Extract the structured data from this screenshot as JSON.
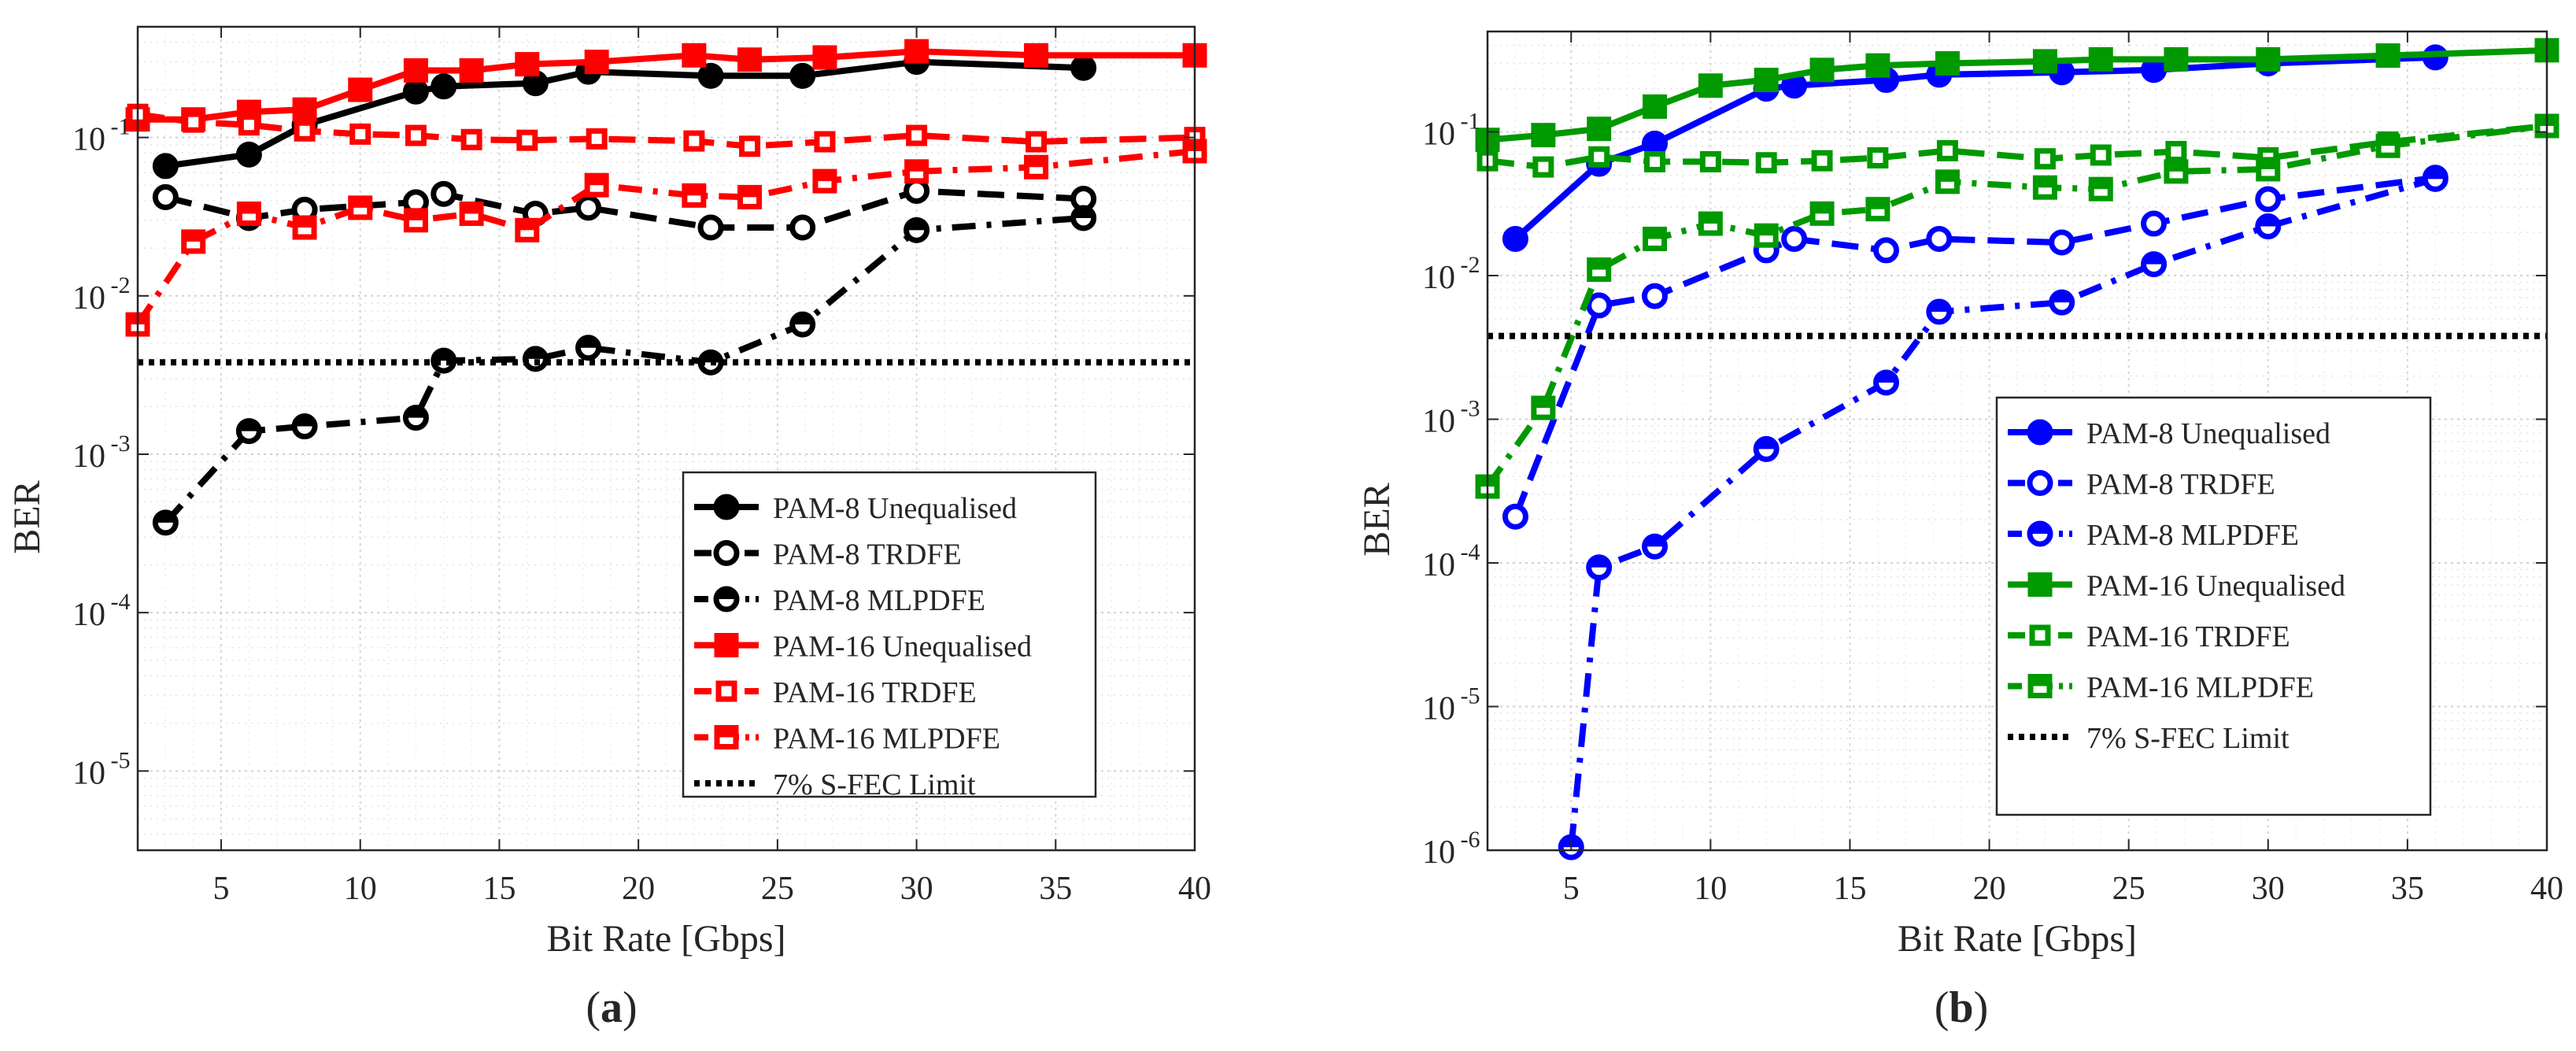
{
  "chart_data": [
    {
      "panel": "(a)",
      "caption_label": "a",
      "type": "line",
      "xlabel": "Bit Rate [Gbps]",
      "ylabel": "BER",
      "yscale": "log",
      "xlim": [
        2,
        40
      ],
      "ylim": [
        3.16e-06,
        0.5
      ],
      "xticks": [
        5,
        10,
        15,
        20,
        25,
        30,
        35,
        40
      ],
      "yticks": [
        {
          "value": 1e-05,
          "exp": "-5"
        },
        {
          "value": 0.0001,
          "exp": "-4"
        },
        {
          "value": 0.001,
          "exp": "-3"
        },
        {
          "value": 0.01,
          "exp": "-2"
        },
        {
          "value": 0.1,
          "exp": "-1"
        }
      ],
      "grid": true,
      "legend_position": "bottom-right",
      "series": [
        {
          "name": "PAM-8 Unequalised",
          "color": "#000000",
          "dash": "solid",
          "marker": "circle-filled",
          "x": [
            3,
            6,
            8,
            12,
            13,
            16.3,
            18.2,
            22.6,
            25.9,
            30,
            36
          ],
          "y": [
            0.066,
            0.078,
            0.12,
            0.195,
            0.21,
            0.22,
            0.26,
            0.245,
            0.245,
            0.3,
            0.275
          ]
        },
        {
          "name": "PAM-8 TRDFE",
          "color": "#000000",
          "dash": "dashed",
          "marker": "circle-open",
          "x": [
            3,
            6,
            8,
            12,
            13,
            16.3,
            18.2,
            22.6,
            25.9,
            30,
            36
          ],
          "y": [
            0.042,
            0.031,
            0.035,
            0.039,
            0.044,
            0.033,
            0.036,
            0.027,
            0.027,
            0.046,
            0.041
          ]
        },
        {
          "name": "PAM-8 MLPDFE",
          "color": "#000000",
          "dash": "dashdot",
          "marker": "circle-half",
          "x": [
            3,
            6,
            8,
            12,
            13,
            16.3,
            18.2,
            22.6,
            25.9,
            30,
            36
          ],
          "y": [
            0.00037,
            0.0014,
            0.0015,
            0.0017,
            0.0039,
            0.004,
            0.0047,
            0.0038,
            0.0066,
            0.026,
            0.031
          ]
        },
        {
          "name": "PAM-16 Unequalised",
          "color": "#ff0000",
          "dash": "solid",
          "marker": "square-filled",
          "x": [
            2,
            4,
            6,
            8,
            10,
            12,
            14,
            16,
            18.5,
            22,
            24,
            26.7,
            30,
            34.3,
            40
          ],
          "y": [
            0.13,
            0.13,
            0.145,
            0.15,
            0.2,
            0.265,
            0.265,
            0.29,
            0.3,
            0.33,
            0.31,
            0.32,
            0.35,
            0.33,
            0.33
          ]
        },
        {
          "name": "PAM-16 TRDFE",
          "color": "#ff0000",
          "dash": "dashed",
          "marker": "square-open",
          "x": [
            2,
            4,
            6,
            8,
            10,
            12,
            14,
            16,
            18.5,
            22,
            24,
            26.7,
            30,
            34.3,
            40
          ],
          "y": [
            0.14,
            0.125,
            0.12,
            0.11,
            0.105,
            0.103,
            0.097,
            0.096,
            0.098,
            0.095,
            0.088,
            0.094,
            0.103,
            0.094,
            0.1
          ]
        },
        {
          "name": "PAM-16 MLPDFE",
          "color": "#ff0000",
          "dash": "dashdot",
          "marker": "square-half",
          "x": [
            2,
            4,
            6,
            8,
            10,
            12,
            14,
            16,
            18.5,
            22,
            24,
            26.7,
            30,
            34.3,
            40
          ],
          "y": [
            0.0066,
            0.022,
            0.033,
            0.027,
            0.036,
            0.03,
            0.033,
            0.026,
            0.05,
            0.043,
            0.042,
            0.053,
            0.061,
            0.065,
            0.082
          ]
        },
        {
          "name": "7% S-FEC Limit",
          "color": "#000000",
          "dash": "dotted",
          "marker": "none",
          "x": [
            2,
            40
          ],
          "y": [
            0.0038,
            0.0038
          ]
        }
      ]
    },
    {
      "panel": "(b)",
      "caption_label": "b",
      "type": "line",
      "xlabel": "Bit Rate [Gbps]",
      "ylabel": "BER",
      "yscale": "log",
      "xlim": [
        2,
        40
      ],
      "ylim": [
        1e-06,
        0.5
      ],
      "xticks": [
        5,
        10,
        15,
        20,
        25,
        30,
        35,
        40
      ],
      "yticks": [
        {
          "value": 1e-06,
          "exp": "-6"
        },
        {
          "value": 1e-05,
          "exp": "-5"
        },
        {
          "value": 0.0001,
          "exp": "-4"
        },
        {
          "value": 0.001,
          "exp": "-3"
        },
        {
          "value": 0.01,
          "exp": "-2"
        },
        {
          "value": 0.1,
          "exp": "-1"
        }
      ],
      "grid": true,
      "legend_position": "bottom-right",
      "series": [
        {
          "name": "PAM-8 Unequalised",
          "color": "#0000ff",
          "dash": "solid",
          "marker": "circle-filled",
          "x": [
            3,
            6,
            8,
            12,
            13,
            16.3,
            18.2,
            22.6,
            25.9,
            30,
            36
          ],
          "y": [
            0.018,
            0.06,
            0.083,
            0.2,
            0.21,
            0.23,
            0.25,
            0.26,
            0.27,
            0.3,
            0.33
          ]
        },
        {
          "name": "PAM-8 TRDFE",
          "color": "#0000ff",
          "dash": "dashed",
          "marker": "circle-open",
          "x": [
            3,
            6,
            8,
            12,
            13,
            16.3,
            18.2,
            22.6,
            25.9,
            30,
            36
          ],
          "y": [
            0.00021,
            0.0062,
            0.0072,
            0.015,
            0.018,
            0.015,
            0.018,
            0.017,
            0.023,
            0.034,
            0.048
          ]
        },
        {
          "name": "PAM-8 MLPDFE",
          "color": "#0000ff",
          "dash": "dashdot",
          "marker": "circle-half",
          "x": [
            5,
            6,
            8,
            12,
            16.3,
            18.2,
            22.6,
            25.9,
            30,
            36
          ],
          "y": [
            1.05e-06,
            9.3e-05,
            0.00013,
            0.00062,
            0.0018,
            0.0056,
            0.0065,
            0.012,
            0.022,
            0.047
          ]
        },
        {
          "name": "PAM-16 Unequalised",
          "color": "#009900",
          "dash": "solid",
          "marker": "square-filled",
          "x": [
            2,
            4,
            6,
            8,
            10,
            12,
            14,
            16,
            18.5,
            22,
            24,
            26.7,
            30,
            34.3,
            40
          ],
          "y": [
            0.088,
            0.095,
            0.105,
            0.15,
            0.21,
            0.23,
            0.27,
            0.29,
            0.3,
            0.31,
            0.32,
            0.32,
            0.32,
            0.34,
            0.37
          ]
        },
        {
          "name": "PAM-16 TRDFE",
          "color": "#009900",
          "dash": "dashed",
          "marker": "square-open",
          "x": [
            2,
            4,
            6,
            8,
            10,
            12,
            14,
            16,
            18.5,
            22,
            24,
            26.7,
            30,
            34.3,
            40
          ],
          "y": [
            0.063,
            0.057,
            0.067,
            0.062,
            0.062,
            0.061,
            0.063,
            0.066,
            0.074,
            0.065,
            0.069,
            0.073,
            0.066,
            0.085,
            0.11
          ]
        },
        {
          "name": "PAM-16 MLPDFE",
          "color": "#009900",
          "dash": "dashdot",
          "marker": "square-half",
          "x": [
            2,
            4,
            6,
            8,
            10,
            12,
            14,
            16,
            18.5,
            22,
            24,
            26.7,
            30,
            34.3,
            40
          ],
          "y": [
            0.00034,
            0.0012,
            0.011,
            0.018,
            0.023,
            0.019,
            0.027,
            0.029,
            0.045,
            0.041,
            0.04,
            0.053,
            0.055,
            0.08,
            0.11
          ]
        },
        {
          "name": "7% S-FEC Limit",
          "color": "#000000",
          "dash": "dotted",
          "marker": "none",
          "x": [
            2,
            40
          ],
          "y": [
            0.0038,
            0.0038
          ]
        }
      ]
    }
  ]
}
